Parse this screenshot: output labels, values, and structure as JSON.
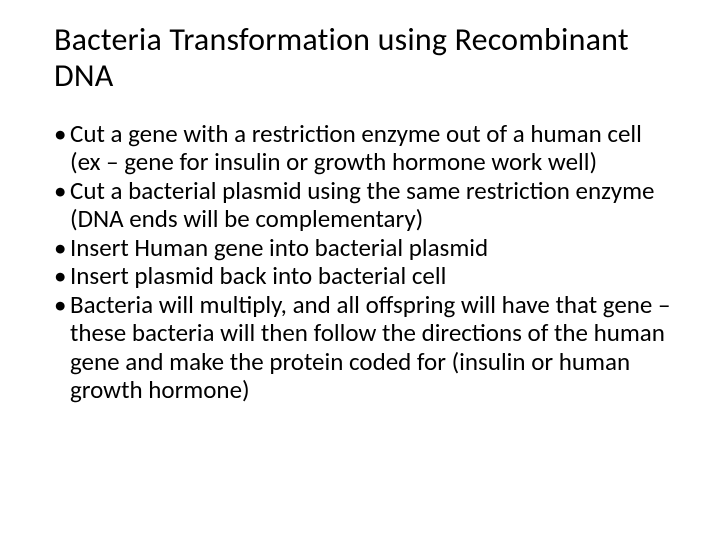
{
  "slide": {
    "title": "Bacteria Transformation using Recombinant DNA",
    "title_fontsize": 32,
    "title_color": "#000000",
    "background_color": "#ffffff",
    "body_fontsize": 25,
    "body_color": "#000000",
    "bullets": [
      "Cut a gene with a restriction enzyme out of a human cell (ex – gene for insulin or growth hormone work well)",
      "Cut a bacterial plasmid using the same restriction enzyme (DNA ends will be complementary)",
      "Insert Human gene into bacterial plasmid",
      "Insert plasmid back into bacterial cell",
      "Bacteria will multiply, and all offspring will have that gene – these bacteria will then follow the directions of the human gene and make the protein coded for (insulin or human growth hormone)"
    ]
  }
}
